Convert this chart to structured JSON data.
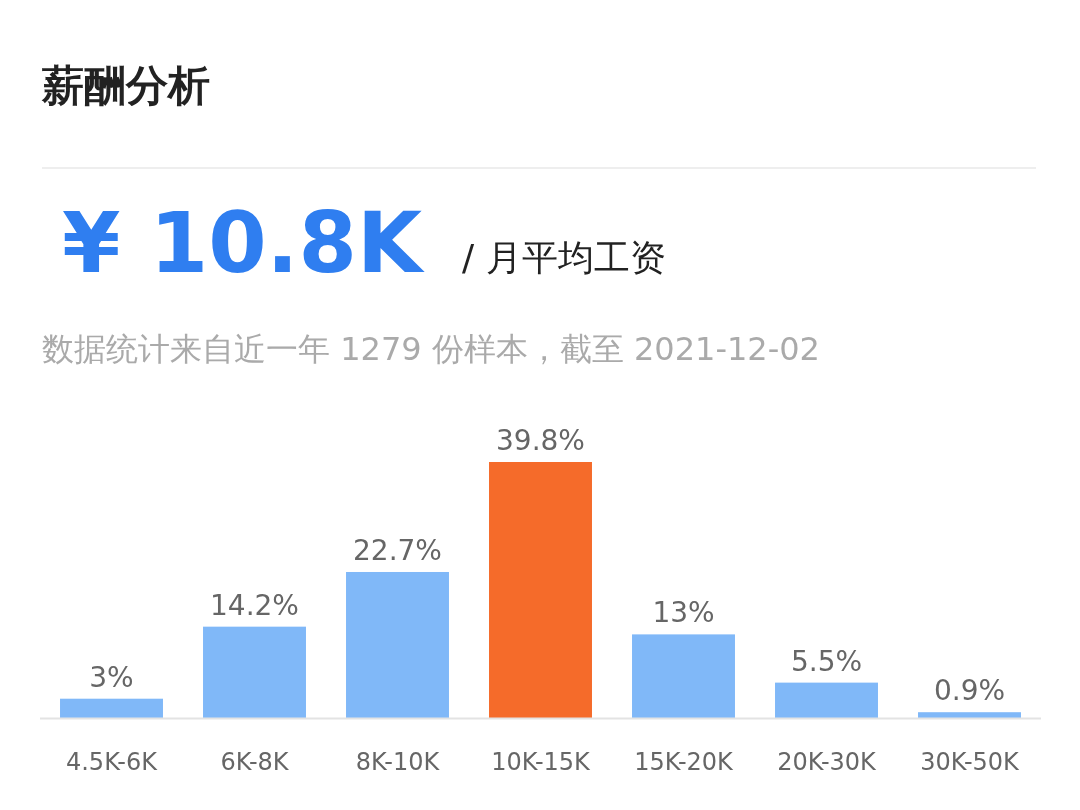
{
  "chart_data": {
    "type": "bar",
    "title": "薪酬分析",
    "subtitle": "数据统计来自近一年 1279 份样本，截至 2021-12-02",
    "annotations": [
      "¥ 10.8K",
      "/ 月平均工资"
    ],
    "categories": [
      "4.5K-6K",
      "6K-8K",
      "8K-10K",
      "10K-15K",
      "15K-20K",
      "20K-30K",
      "30K-50K"
    ],
    "values": [
      3,
      14.2,
      22.7,
      39.8,
      13,
      5.5,
      0.9
    ],
    "value_labels": [
      "3%",
      "14.2%",
      "22.7%",
      "39.8%",
      "13%",
      "5.5%",
      "0.9%"
    ],
    "colors": [
      "#80b8f8",
      "#80b8f8",
      "#80b8f8",
      "#f56b2a",
      "#80b8f8",
      "#80b8f8",
      "#80b8f8"
    ]
  }
}
